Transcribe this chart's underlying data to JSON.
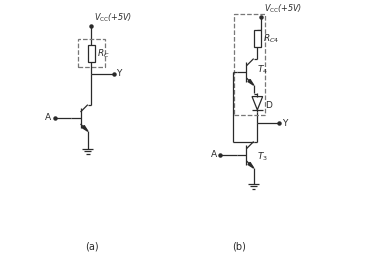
{
  "bg_color": "#ffffff",
  "line_color": "#2a2a2a",
  "fig_width": 3.82,
  "fig_height": 2.58,
  "dpi": 100,
  "label_a": "(a)",
  "label_b": "(b)",
  "vcc_label_a": "$V_{\\rm CC}$(+5V)",
  "vcc_label_b": "$V_{\\rm CC}$(+5V)",
  "rc_label": "$R_C$",
  "rc4_label": "$R_{C4}$",
  "t4_label": "$T_4$",
  "t3_label": "$T_3$",
  "d_label": "D",
  "y_label": "Y",
  "a_label": "A"
}
